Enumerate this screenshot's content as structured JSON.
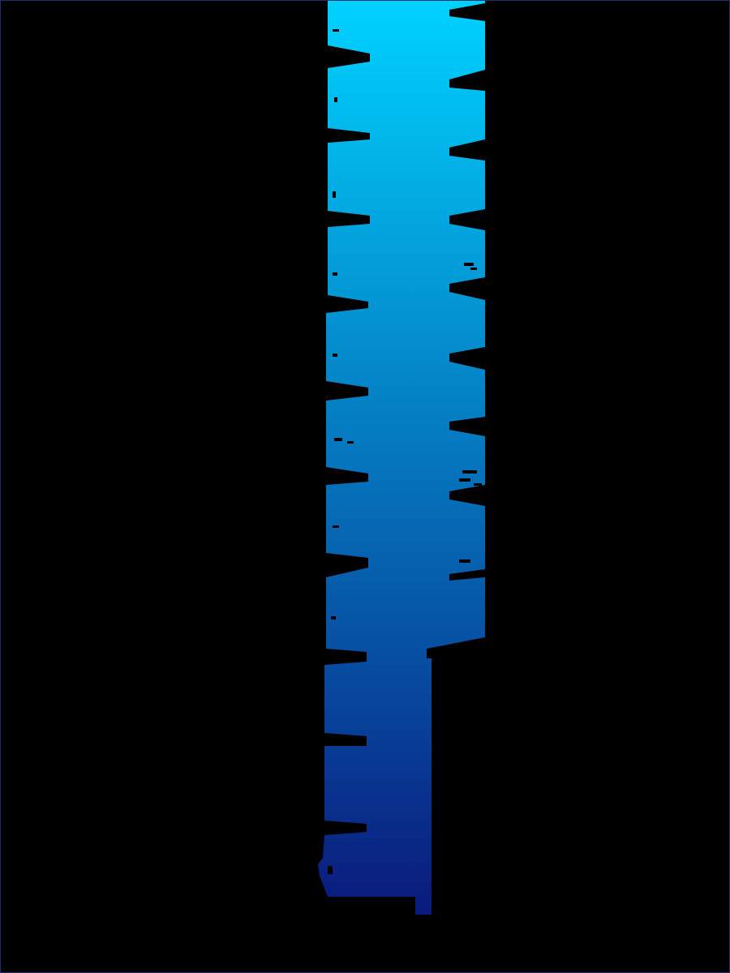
{
  "image": {
    "background_color": "#000000",
    "gradient_top_color": "#00d2ff",
    "gradient_bottom_color": "#0a1a7c",
    "frame_color": "#1a2f6b"
  }
}
